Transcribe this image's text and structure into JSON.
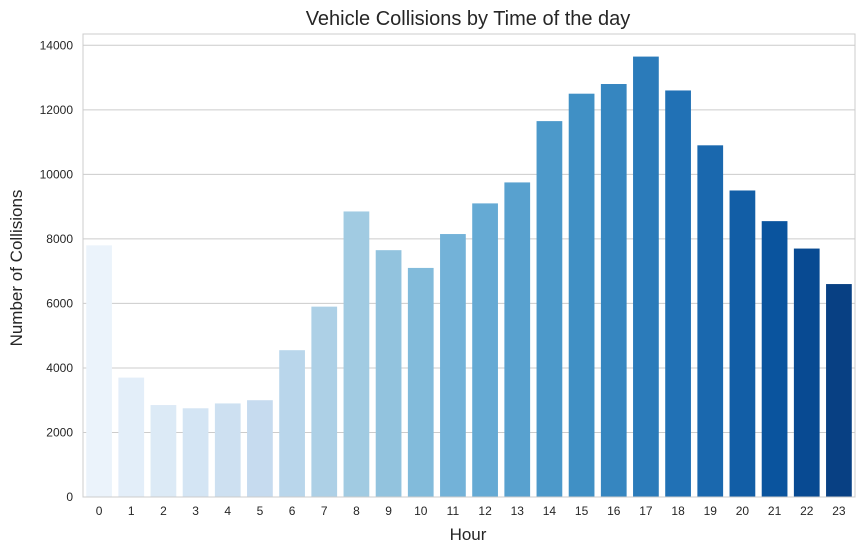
{
  "chart_data": {
    "type": "bar",
    "title": "Vehicle Collisions by Time of the day",
    "xlabel": "Hour",
    "ylabel": "Number of Collisions",
    "categories": [
      "0",
      "1",
      "2",
      "3",
      "4",
      "5",
      "6",
      "7",
      "8",
      "9",
      "10",
      "11",
      "12",
      "13",
      "14",
      "15",
      "16",
      "17",
      "18",
      "19",
      "20",
      "21",
      "22",
      "23"
    ],
    "values": [
      7800,
      3700,
      2850,
      2750,
      2900,
      3000,
      4550,
      5900,
      8850,
      7650,
      7100,
      8150,
      9100,
      9750,
      11650,
      12500,
      12800,
      13650,
      12600,
      10900,
      9500,
      8550,
      7700,
      6600
    ],
    "ylim": [
      0,
      14350
    ],
    "yticks": [
      0,
      2000,
      4000,
      6000,
      8000,
      10000,
      12000,
      14000
    ],
    "grid": "horizontal",
    "palette": "Blues",
    "colors": {
      "light": "#f1f6fc",
      "dark": "#083574",
      "grid": "#cccccc",
      "axes": "#cccccc",
      "text": "#262626"
    }
  }
}
